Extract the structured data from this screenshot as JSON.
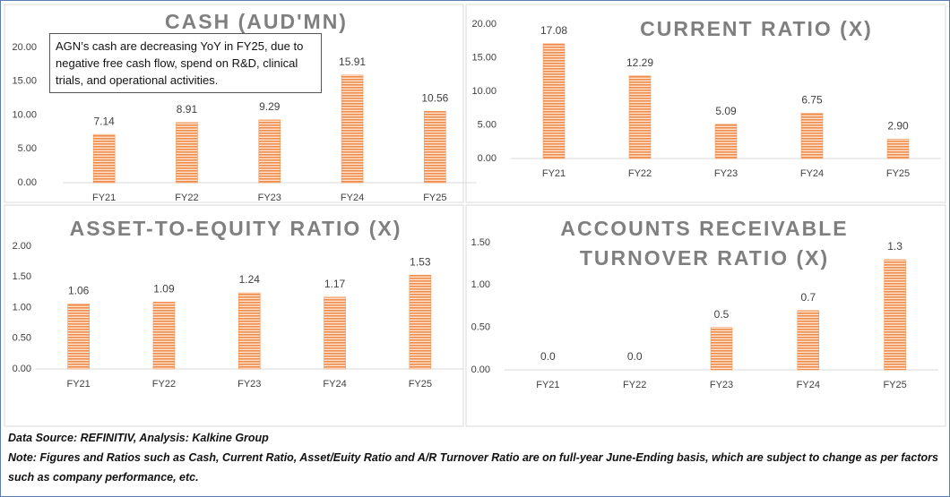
{
  "chart_data": [
    {
      "type": "bar",
      "title": "CASH (AUD'MN)",
      "annotation": "AGN’s cash are decreasing YoY in FY25, due to negative free cash flow, spend on R&D, clinical trials, and operational activities.",
      "categories": [
        "FY21",
        "FY22",
        "FY23",
        "FY24",
        "FY25"
      ],
      "values": [
        7.14,
        8.91,
        9.29,
        15.91,
        10.56
      ],
      "color": "#f08c4a",
      "ylim": [
        0,
        20
      ],
      "yticks": [
        {
          "value": 0,
          "label": "0.00"
        },
        {
          "value": 5,
          "label": "5.00"
        },
        {
          "value": 10,
          "label": "10.00"
        },
        {
          "value": 15,
          "label": "15.00"
        },
        {
          "value": 20,
          "label": "20.00"
        }
      ]
    },
    {
      "type": "bar",
      "title": "CURRENT RATIO (X)",
      "categories": [
        "FY21",
        "FY22",
        "FY23",
        "FY24",
        "FY25"
      ],
      "values": [
        17.08,
        12.29,
        5.09,
        6.75,
        2.9
      ],
      "value_labels": [
        "17.08",
        "12.29",
        "5.09",
        "6.75",
        "2.90"
      ],
      "color": "#f08c4a",
      "ylim": [
        0,
        20
      ],
      "yticks": [
        {
          "value": 0,
          "label": "0.00"
        },
        {
          "value": 5,
          "label": "5.00"
        },
        {
          "value": 10,
          "label": "10.00"
        },
        {
          "value": 15,
          "label": "15.00"
        },
        {
          "value": 20,
          "label": "20.00"
        }
      ]
    },
    {
      "type": "bar",
      "title": "ASSET-TO-EQUITY RATIO (X)",
      "categories": [
        "FY21",
        "FY22",
        "FY23",
        "FY24",
        "FY25"
      ],
      "values": [
        1.06,
        1.09,
        1.24,
        1.17,
        1.53
      ],
      "color": "#f08c4a",
      "ylim": [
        0,
        2
      ],
      "yticks": [
        {
          "value": 0,
          "label": "0.00"
        },
        {
          "value": 0.5,
          "label": "0.50"
        },
        {
          "value": 1,
          "label": "1.00"
        },
        {
          "value": 1.5,
          "label": "1.50"
        },
        {
          "value": 2,
          "label": "2.00"
        }
      ]
    },
    {
      "type": "bar",
      "title": [
        "ACCOUNTS RECEIVABLE",
        "TURNOVER RATIO (X)"
      ],
      "categories": [
        "FY21",
        "FY22",
        "FY23",
        "FY24",
        "FY25"
      ],
      "values": [
        0,
        0,
        0.5,
        0.7,
        1.3
      ],
      "value_labels": [
        "0.0",
        "0.0",
        "0.5",
        "0.7",
        "1.3"
      ],
      "color": "#f08c4a",
      "ylim": [
        0,
        1.5
      ],
      "yticks": [
        {
          "value": 0,
          "label": "0.00"
        },
        {
          "value": 0.5,
          "label": "0.50"
        },
        {
          "value": 1,
          "label": "1.00"
        },
        {
          "value": 1.5,
          "label": "1.50"
        }
      ]
    }
  ],
  "notes": [
    "Data Source: REFINITIV, Analysis: Kalkine Group",
    "Note: Figures and Ratios such as Cash, Current Ratio, Asset/Euity Ratio and A/R Turnover Ratio are on full-year June-Ending basis, which are subject to change as per factors such as company performance, etc."
  ]
}
